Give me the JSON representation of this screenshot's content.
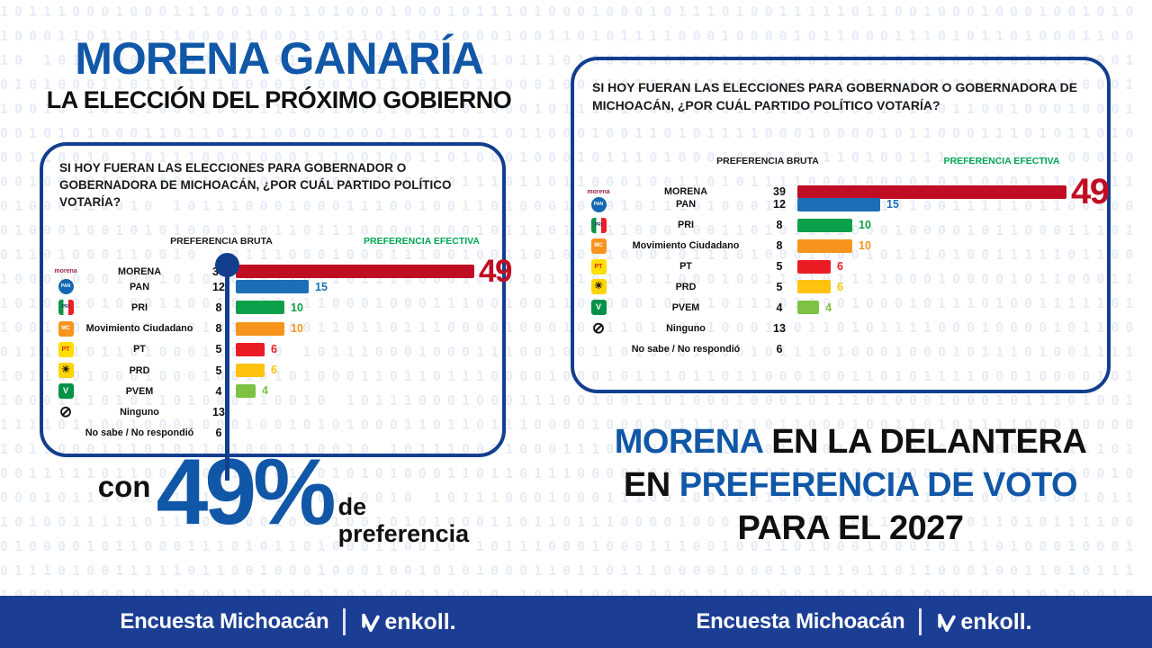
{
  "question": "SI HOY FUERAN LAS ELECCIONES PARA GOBERNADOR O GOBERNADORA DE MICHOACÁN, ¿POR CUÁL PARTIDO POLÍTICO VOTARÍA?",
  "columns": {
    "bruta": "PREFERENCIA BRUTA",
    "efectiva": "PREFERENCIA EFECTIVA"
  },
  "left": {
    "title_line1": "MORENA GANARÍA",
    "title_line2": "LA ELECCIÓN DEL PRÓXIMO GOBIERNO",
    "callout": {
      "prefix": "con",
      "value": "49%",
      "suffix_line1": "de",
      "suffix_line2": "preferencia"
    }
  },
  "right": {
    "headline": {
      "l1_blue": "MORENA",
      "l1_black": "EN LA DELANTERA",
      "l2_black": "EN",
      "l2_blue": "PREFERENCIA DE VOTO",
      "l3_black": "PARA EL 2027"
    }
  },
  "footer": {
    "survey": "Encuesta Michoacán",
    "brand": "enkoll."
  },
  "colors": {
    "brand_blue": "#1157A7",
    "navy": "#123E8E",
    "footer_blue": "#1B3E94",
    "efectiva_green": "#00A651"
  },
  "parties": [
    {
      "name": "MORENA",
      "bruta": 39,
      "efectiva": 49,
      "color": "#C10D23",
      "icon_name": "morena-party-icon",
      "icon_glyph": "morena",
      "icon_shape": "wordmark",
      "icon_bg": "",
      "icon_fg": "#9D2449",
      "icon_size": 7
    },
    {
      "name": "PAN",
      "bruta": 12,
      "efectiva": 15,
      "color": "#1C6FB7",
      "icon_name": "pan-party-icon",
      "icon_glyph": "PAN",
      "icon_shape": "circle",
      "icon_bg": "#1467B2",
      "icon_fg": "#FFFFFF",
      "icon_size": 5
    },
    {
      "name": "PRI",
      "bruta": 8,
      "efectiva": 10,
      "color": "#0DA04A",
      "icon_name": "pri-party-icon",
      "icon_glyph": "PRI",
      "icon_shape": "square",
      "icon_bg": "linear-gradient(90deg,#0E9347 0 33%,#FFFFFF 33% 66%,#EE1C25 66% 100%)",
      "icon_fg": "#16324F",
      "icon_size": 5
    },
    {
      "name": "Movimiento Ciudadano",
      "bruta": 8,
      "efectiva": 10,
      "color": "#F7941D",
      "icon_name": "movimiento-ciudadano-party-icon",
      "icon_glyph": "MC",
      "icon_shape": "square",
      "icon_bg": "#F7941D",
      "icon_fg": "#FFFFFF",
      "icon_size": 6
    },
    {
      "name": "PT",
      "bruta": 5,
      "efectiva": 6,
      "color": "#EC1C24",
      "icon_name": "pt-party-icon",
      "icon_glyph": "PT",
      "icon_shape": "square",
      "icon_bg": "#FFDE00",
      "icon_fg": "#E3211C",
      "icon_size": 7
    },
    {
      "name": "PRD",
      "bruta": 5,
      "efectiva": 6,
      "color": "#FFC20E",
      "icon_name": "prd-party-icon",
      "icon_glyph": "☀",
      "icon_shape": "square",
      "icon_bg": "#FFD500",
      "icon_fg": "#111111",
      "icon_size": 11
    },
    {
      "name": "PVEM",
      "bruta": 4,
      "efectiva": 4,
      "color": "#7DC242",
      "icon_name": "pvem-party-icon",
      "icon_glyph": "V",
      "icon_shape": "square",
      "icon_bg": "#009247",
      "icon_fg": "#FFFFFF",
      "icon_size": 9
    },
    {
      "name": "Ninguno",
      "bruta": 13,
      "efectiva": null,
      "color": null,
      "icon_name": "ninguno-crossed-circle-icon",
      "icon_glyph": "⊘",
      "icon_shape": "plain",
      "icon_bg": "",
      "icon_fg": "#111111",
      "icon_size": 17
    },
    {
      "name": "No sabe / No respondió",
      "bruta": 6,
      "efectiva": null,
      "color": null,
      "icon_name": null,
      "icon_glyph": null,
      "icon_shape": null,
      "icon_bg": null,
      "icon_fg": null,
      "icon_size": null
    }
  ],
  "chart_data": {
    "type": "bar",
    "title": "SI HOY FUERAN LAS ELECCIONES PARA GOBERNADOR O GOBERNADORA DE MICHOACÁN, ¿POR CUÁL PARTIDO POLÍTICO VOTARÍA?",
    "orientation": "horizontal",
    "duplicated_panels": 2,
    "categories": [
      "MORENA",
      "PAN",
      "PRI",
      "Movimiento Ciudadano",
      "PT",
      "PRD",
      "PVEM",
      "Ninguno",
      "No sabe / No respondió"
    ],
    "series": [
      {
        "name": "PREFERENCIA BRUTA",
        "values": [
          39,
          12,
          8,
          8,
          5,
          5,
          4,
          13,
          6
        ]
      },
      {
        "name": "PREFERENCIA EFECTIVA",
        "values": [
          49,
          15,
          10,
          10,
          6,
          6,
          4,
          null,
          null
        ]
      }
    ],
    "bar_colors": [
      "#C10D23",
      "#1C6FB7",
      "#0DA04A",
      "#F7941D",
      "#EC1C24",
      "#FFC20E",
      "#7DC242",
      null,
      null
    ],
    "value_labels": true,
    "xlim": [
      0,
      49
    ],
    "annotations": [
      "con 49% de preferencia",
      "MORENA EN LA DELANTERA EN PREFERENCIA DE VOTO PARA EL 2027"
    ]
  },
  "background": {
    "binary_pattern": "1011100010001110010011010001000101110100010001011101001111101100100010001001010100011011011100001000101110110110001001101011110001000010110001110101101000110010 "
  }
}
